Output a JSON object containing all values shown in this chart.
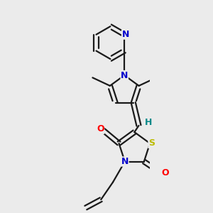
{
  "bg_color": "#ebebeb",
  "atom_colors": {
    "N": "#0000cc",
    "O": "#ff0000",
    "S": "#bbbb00",
    "H": "#008888"
  },
  "bond_color": "#1a1a1a",
  "lw": 1.6
}
